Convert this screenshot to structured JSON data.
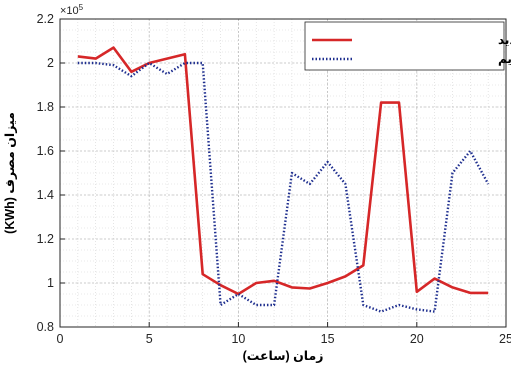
{
  "chart_data": {
    "type": "line",
    "xlabel": "زمان (ساعت)",
    "ylabel": "میزان مصرف (KWh)",
    "y_exponent_label": "×10",
    "y_exponent_power": "5",
    "xlim": [
      0,
      25
    ],
    "ylim": [
      0.8,
      2.2
    ],
    "xticks": [
      0,
      5,
      10,
      15,
      20,
      25
    ],
    "xtick_labels": [
      "0",
      "5",
      "10",
      "15",
      "20",
      "25"
    ],
    "yticks": [
      0.8,
      1,
      1.2,
      1.4,
      1.6,
      1.8,
      2,
      2.2
    ],
    "ytick_labels": [
      "0.8",
      "1",
      "1.2",
      "1.4",
      "1.6",
      "1.8",
      "2",
      "2.2"
    ],
    "grid": true,
    "minor_grid": true,
    "legend_position": "top-right",
    "x": [
      1,
      2,
      3,
      4,
      5,
      6,
      7,
      8,
      9,
      10,
      11,
      12,
      13,
      14,
      15,
      16,
      17,
      18,
      19,
      20,
      21,
      22,
      23,
      24
    ],
    "series": [
      {
        "name": "منحنی بار جدید",
        "color": "#d62728",
        "style": "solid",
        "values": [
          2.03,
          2.02,
          2.07,
          1.96,
          2.0,
          2.02,
          2.04,
          1.04,
          0.99,
          0.95,
          1.0,
          1.01,
          0.98,
          0.975,
          1.0,
          1.03,
          1.08,
          1.82,
          1.82,
          0.96,
          1.02,
          0.98,
          0.955,
          0.955
        ]
      },
      {
        "name": "منحنی بار قدیم",
        "color": "#1f2f8f",
        "style": "dotted",
        "values": [
          2.0,
          2.0,
          1.99,
          1.94,
          2.0,
          1.95,
          2.0,
          2.0,
          0.9,
          0.95,
          0.9,
          0.9,
          1.5,
          1.45,
          1.55,
          1.45,
          0.9,
          0.87,
          0.9,
          0.88,
          0.87,
          1.5,
          1.6,
          1.45
        ]
      }
    ]
  }
}
